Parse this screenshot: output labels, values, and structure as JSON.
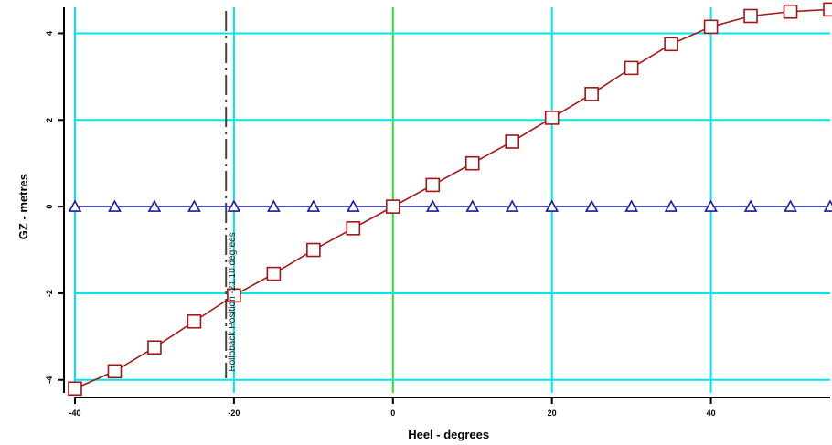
{
  "chart_data": {
    "type": "line",
    "title": "",
    "xlabel": "Heel - degrees",
    "ylabel": "GZ - metres",
    "xlim": [
      -40,
      55
    ],
    "ylim": [
      -4.3,
      4.6
    ],
    "x_ticks": [
      -40,
      -20,
      0,
      20,
      40
    ],
    "x_tick_labels": [
      "-40",
      "-20",
      "0",
      "20",
      "40"
    ],
    "y_ticks": [
      -4,
      -2,
      0,
      2,
      4
    ],
    "y_tick_labels": [
      "-4",
      "-2",
      "0",
      "2",
      "4"
    ],
    "grid": true,
    "zero_line_x": 0,
    "marker_line_x": -21,
    "annotation": "Rolloback Position -21.10 degrees",
    "colors": {
      "grid": "#00e5ee",
      "zero_line": "#33dd33",
      "gz_series": "#a01818",
      "flat_series": "#1a1aa0",
      "marker_line": "#444444"
    },
    "series": [
      {
        "marker": "square",
        "x": [
          -40,
          -35,
          -30,
          -25,
          -20,
          -15,
          -10,
          -5,
          0,
          5,
          10,
          15,
          20,
          25,
          30,
          35,
          40,
          45,
          50,
          55
        ],
        "y": [
          -4.2,
          -3.8,
          -3.25,
          -2.65,
          -2.05,
          -1.55,
          -1.0,
          -0.5,
          0.0,
          0.5,
          1.0,
          1.5,
          2.05,
          2.6,
          3.2,
          3.75,
          4.15,
          4.4,
          4.5,
          4.55
        ]
      },
      {
        "marker": "triangle",
        "x": [
          -40,
          -35,
          -30,
          -25,
          -20,
          -15,
          -10,
          -5,
          0,
          5,
          10,
          15,
          20,
          25,
          30,
          35,
          40,
          45,
          50,
          55
        ],
        "y": [
          0,
          0,
          0,
          0,
          0,
          0,
          0,
          0,
          0,
          0,
          0,
          0,
          0,
          0,
          0,
          0,
          0,
          0,
          0,
          0
        ]
      }
    ]
  }
}
